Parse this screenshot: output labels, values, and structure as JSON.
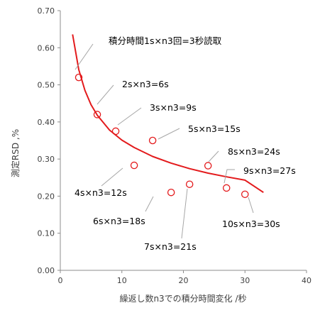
{
  "chart_data": {
    "type": "scatter",
    "title": "",
    "xlabel": "繰返し数n3での積分時間変化 /秒",
    "ylabel": "測定RSD ,%",
    "xlim": [
      0,
      40
    ],
    "ylim": [
      0,
      0.7
    ],
    "x_ticks": [
      "0",
      "10",
      "20",
      "30",
      "40"
    ],
    "y_ticks": [
      "0.00",
      "0.10",
      "0.20",
      "0.30",
      "0.40",
      "0.50",
      "0.60",
      "0.70"
    ],
    "grid": false,
    "legend": "none",
    "series": [
      {
        "kind": "scatter",
        "marker": "open-circle",
        "color": "#e31a1c",
        "points": [
          {
            "x": 3,
            "y": 0.52,
            "label": "積分時間1s×n3回=3秒読取"
          },
          {
            "x": 6,
            "y": 0.42,
            "label": "2s×n3=6s"
          },
          {
            "x": 9,
            "y": 0.375,
            "label": "3s×n3=9s"
          },
          {
            "x": 12,
            "y": 0.283,
            "label": "4s×n3=12s"
          },
          {
            "x": 15,
            "y": 0.35,
            "label": "5s×n3=15s"
          },
          {
            "x": 18,
            "y": 0.21,
            "label": "6s×n3=18s"
          },
          {
            "x": 21,
            "y": 0.232,
            "label": "7s×n3=21s"
          },
          {
            "x": 24,
            "y": 0.282,
            "label": "8s×n3=24s"
          },
          {
            "x": 27,
            "y": 0.222,
            "label": "9s×n3=27s"
          },
          {
            "x": 30,
            "y": 0.205,
            "label": "10s×n3=30s"
          }
        ]
      },
      {
        "kind": "line",
        "style": "fitted-curve",
        "color": "#e31a1c",
        "x": [
          2,
          3,
          4,
          5,
          6,
          8,
          10,
          12,
          15,
          18,
          21,
          24,
          27,
          30,
          33
        ],
        "y": [
          0.636,
          0.541,
          0.485,
          0.446,
          0.418,
          0.378,
          0.351,
          0.331,
          0.307,
          0.289,
          0.274,
          0.262,
          0.252,
          0.243,
          0.21
        ]
      }
    ]
  }
}
